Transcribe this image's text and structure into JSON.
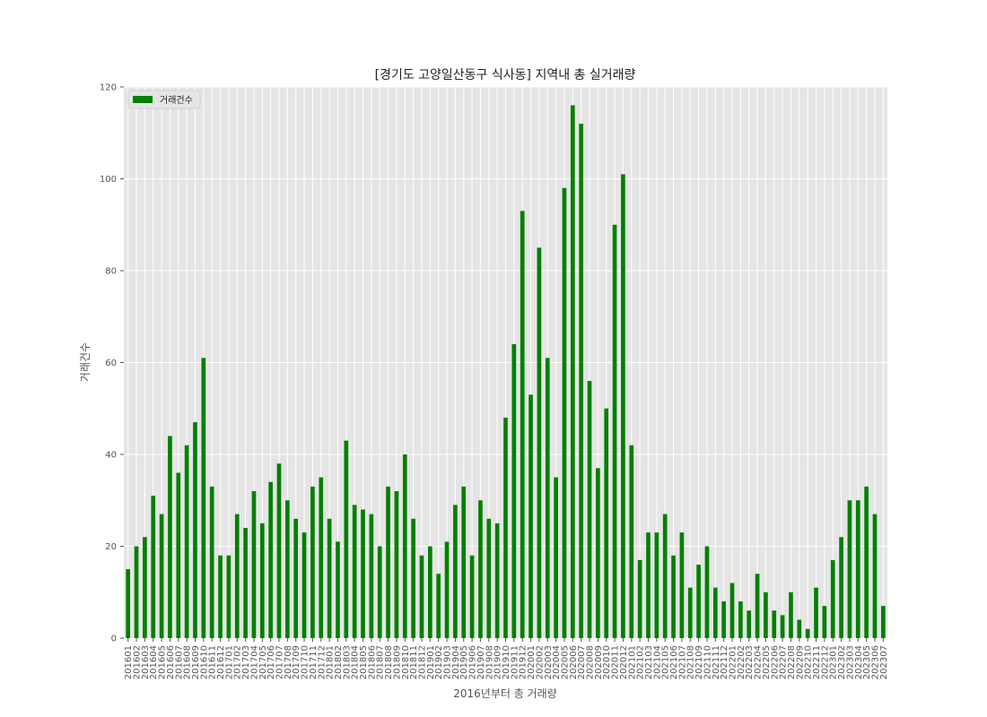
{
  "chart_data": {
    "type": "bar",
    "title": "[경기도 고양일산동구 식사동] 지역내 총 실거래량",
    "xlabel": "2016년부터 총 거래량",
    "ylabel": "거래건수",
    "ylim": [
      0,
      120
    ],
    "yticks": [
      0,
      20,
      40,
      60,
      80,
      100,
      120
    ],
    "grid": true,
    "legend_position": "top-left",
    "bar_color": "#008000",
    "categories": [
      "201601",
      "201602",
      "201603",
      "201604",
      "201605",
      "201606",
      "201607",
      "201608",
      "201609",
      "201610",
      "201611",
      "201612",
      "201701",
      "201702",
      "201703",
      "201704",
      "201705",
      "201706",
      "201707",
      "201708",
      "201709",
      "201710",
      "201711",
      "201712",
      "201801",
      "201802",
      "201803",
      "201804",
      "201805",
      "201806",
      "201807",
      "201808",
      "201809",
      "201810",
      "201811",
      "201812",
      "201901",
      "201902",
      "201903",
      "201904",
      "201905",
      "201906",
      "201907",
      "201908",
      "201909",
      "201910",
      "201911",
      "201912",
      "202001",
      "202002",
      "202003",
      "202004",
      "202005",
      "202006",
      "202007",
      "202008",
      "202009",
      "202010",
      "202011",
      "202012",
      "202101",
      "202102",
      "202103",
      "202104",
      "202105",
      "202106",
      "202107",
      "202108",
      "202109",
      "202110",
      "202111",
      "202112",
      "202201",
      "202202",
      "202203",
      "202204",
      "202205",
      "202206",
      "202207",
      "202208",
      "202209",
      "202210",
      "202211",
      "202212",
      "202301",
      "202302",
      "202303",
      "202304",
      "202305",
      "202306",
      "202307"
    ],
    "series": [
      {
        "name": "거래건수",
        "values": [
          15,
          20,
          22,
          31,
          27,
          44,
          36,
          42,
          47,
          61,
          33,
          18,
          18,
          27,
          24,
          32,
          25,
          34,
          38,
          30,
          26,
          23,
          33,
          35,
          26,
          21,
          43,
          29,
          28,
          27,
          20,
          33,
          32,
          40,
          26,
          18,
          20,
          14,
          21,
          29,
          33,
          18,
          30,
          26,
          25,
          48,
          64,
          93,
          53,
          85,
          61,
          35,
          98,
          116,
          112,
          56,
          37,
          50,
          90,
          101,
          42,
          17,
          23,
          23,
          27,
          18,
          23,
          11,
          16,
          20,
          11,
          8,
          12,
          8,
          6,
          14,
          10,
          6,
          5,
          10,
          4,
          2,
          11,
          7,
          17,
          22,
          30,
          30,
          33,
          27,
          7
        ]
      }
    ]
  }
}
